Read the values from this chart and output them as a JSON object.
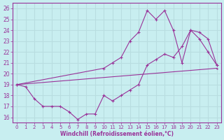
{
  "xlabel": "Windchill (Refroidissement éolien,°C)",
  "bg_color": "#c8eef0",
  "line_color": "#993399",
  "grid_color": "#b8dde0",
  "xlim": [
    -0.5,
    23.5
  ],
  "ylim": [
    15.5,
    26.5
  ],
  "xticks": [
    0,
    1,
    2,
    3,
    4,
    5,
    6,
    7,
    8,
    9,
    10,
    11,
    12,
    13,
    14,
    15,
    16,
    17,
    18,
    19,
    20,
    21,
    22,
    23
  ],
  "yticks": [
    16,
    17,
    18,
    19,
    20,
    21,
    22,
    23,
    24,
    25,
    26
  ],
  "line1_x": [
    0,
    1,
    2,
    3,
    4,
    5,
    6,
    7,
    8,
    9,
    10,
    11,
    12,
    13,
    14,
    15,
    16,
    17,
    18,
    19,
    20,
    21,
    22,
    23
  ],
  "line1_y": [
    19.0,
    18.8,
    17.7,
    17.0,
    17.0,
    17.0,
    16.5,
    15.8,
    16.3,
    16.3,
    18.0,
    17.5,
    18.0,
    18.5,
    19.0,
    20.8,
    21.3,
    21.8,
    21.5,
    22.5,
    24.0,
    23.8,
    23.2,
    20.8
  ],
  "line2_x": [
    0,
    10,
    11,
    12,
    13,
    14,
    15,
    16,
    17,
    18,
    19,
    20,
    21,
    22,
    23
  ],
  "line2_y": [
    19.0,
    20.5,
    21.0,
    21.5,
    23.0,
    23.8,
    25.8,
    25.0,
    25.8,
    24.0,
    21.0,
    24.0,
    23.2,
    22.0,
    20.8
  ],
  "line3_x": [
    0,
    23
  ],
  "line3_y": [
    19.0,
    20.5
  ]
}
